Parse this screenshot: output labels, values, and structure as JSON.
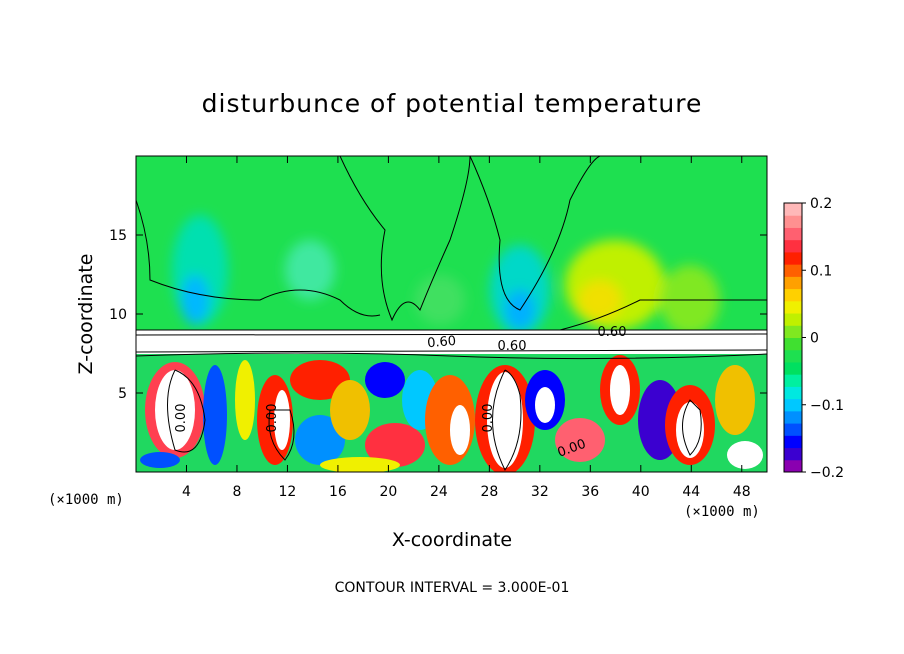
{
  "chart_data": {
    "type": "heatmap",
    "title": "disturbunce of potential temperature",
    "xlabel": "X-coordinate",
    "ylabel": "Z-coordinate",
    "x_unit": "(×1000 m)",
    "y_unit": "(×1000 m)",
    "xlim": [
      0,
      50
    ],
    "ylim": [
      0,
      20
    ],
    "x_ticks": [
      4,
      8,
      12,
      16,
      20,
      24,
      28,
      32,
      36,
      40,
      44,
      48
    ],
    "y_ticks": [
      5,
      10,
      15
    ],
    "colorbar": {
      "min": -0.2,
      "max": 0.2,
      "ticks": [
        0.2,
        0.1,
        0,
        -0.1,
        -0.2
      ],
      "tick_labels": [
        "0.2",
        "0.1",
        "0",
        "−0.1",
        "−0.2"
      ],
      "colors": [
        "#8a00b0",
        "#3b00d0",
        "#0000ff",
        "#0050ff",
        "#0090ff",
        "#00c8ff",
        "#00e8e0",
        "#00f0a0",
        "#00e060",
        "#1ee050",
        "#40e030",
        "#80e820",
        "#c0f000",
        "#f0f000",
        "#ffd000",
        "#ffa000",
        "#ff6000",
        "#ff2000",
        "#ff3040",
        "#ff6070",
        "#ff9090",
        "#ffb8b8"
      ]
    },
    "contour_labels": [
      "0.00",
      "0.00",
      "0.00",
      "0.00",
      "0.60",
      "0.60",
      "0.60"
    ],
    "contour_interval_text": "CONTOUR INTERVAL = 3.000E-01",
    "grid": false
  }
}
